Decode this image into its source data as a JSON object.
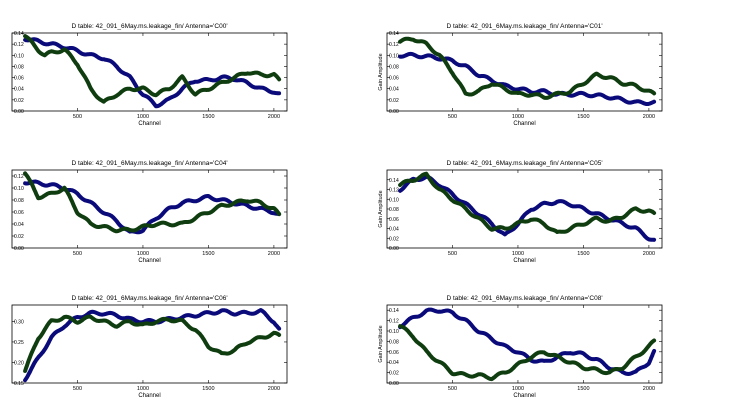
{
  "figure": {
    "colors": {
      "series_a": "#0a0a7a",
      "series_b": "#0f3d10",
      "frame": "#000000",
      "background": "#ffffff"
    }
  },
  "chart_data": [
    {
      "type": "line",
      "title": "D table: 42_091_6May.ms.leakage_fin/      Antenna='C00'",
      "xlabel": "Channel",
      "ylabel": "",
      "xlim": [
        0,
        2100
      ],
      "ylim": [
        0.0,
        0.14
      ],
      "xticks": [
        "500",
        "1000",
        "1500",
        "2000"
      ],
      "yticks": [
        "0.00",
        "0.02",
        "0.04",
        "0.06",
        "0.08",
        "0.10",
        "0.12",
        "0.14"
      ],
      "grid": false,
      "series": [
        {
          "color": "#0a0a7a",
          "x": [
            100,
            200,
            300,
            400,
            500,
            600,
            700,
            800,
            900,
            1000,
            1100,
            1200,
            1300,
            1400,
            1500,
            1600,
            1700,
            1800,
            1900,
            2000,
            2040
          ],
          "y": [
            0.13,
            0.125,
            0.12,
            0.115,
            0.108,
            0.1,
            0.095,
            0.08,
            0.06,
            0.03,
            0.01,
            0.02,
            0.04,
            0.055,
            0.055,
            0.06,
            0.058,
            0.05,
            0.04,
            0.035,
            0.03
          ]
        },
        {
          "color": "#0f3d10",
          "x": [
            100,
            200,
            250,
            300,
            400,
            500,
            600,
            700,
            800,
            900,
            1000,
            1100,
            1200,
            1300,
            1400,
            1500,
            1600,
            1700,
            1800,
            1900,
            2000,
            2040
          ],
          "y": [
            0.135,
            0.11,
            0.1,
            0.105,
            0.11,
            0.085,
            0.04,
            0.015,
            0.03,
            0.04,
            0.04,
            0.03,
            0.04,
            0.06,
            0.03,
            0.04,
            0.05,
            0.06,
            0.07,
            0.065,
            0.065,
            0.055
          ]
        }
      ]
    },
    {
      "type": "line",
      "title": "D table: 42_091_6May.ms.leakage_fin/      Antenna='C01'",
      "xlabel": "Channel",
      "ylabel": "Gain Amplitude",
      "xlim": [
        0,
        2100
      ],
      "ylim": [
        0.0,
        0.14
      ],
      "xticks": [
        "500",
        "1000",
        "1500",
        "2000"
      ],
      "yticks": [
        "0.00",
        "0.02",
        "0.04",
        "0.06",
        "0.08",
        "0.10",
        "0.12",
        "0.14"
      ],
      "grid": false,
      "series": [
        {
          "color": "#0a0a7a",
          "x": [
            100,
            200,
            300,
            400,
            500,
            600,
            700,
            800,
            900,
            1000,
            1100,
            1200,
            1300,
            1400,
            1500,
            1600,
            1700,
            1800,
            1900,
            2000,
            2040
          ],
          "y": [
            0.1,
            0.1,
            0.098,
            0.095,
            0.09,
            0.08,
            0.065,
            0.055,
            0.045,
            0.04,
            0.035,
            0.035,
            0.03,
            0.03,
            0.03,
            0.028,
            0.025,
            0.02,
            0.015,
            0.015,
            0.015
          ]
        },
        {
          "color": "#0f3d10",
          "x": [
            100,
            200,
            300,
            400,
            500,
            600,
            700,
            800,
            900,
            1000,
            1100,
            1200,
            1300,
            1400,
            1500,
            1600,
            1700,
            1800,
            1900,
            2000,
            2040
          ],
          "y": [
            0.125,
            0.13,
            0.12,
            0.1,
            0.07,
            0.03,
            0.035,
            0.05,
            0.04,
            0.03,
            0.03,
            0.025,
            0.03,
            0.035,
            0.05,
            0.065,
            0.06,
            0.05,
            0.045,
            0.035,
            0.03
          ]
        }
      ]
    },
    {
      "type": "line",
      "title": "D table: 42_091_6May.ms.leakage_fin/      Antenna='C04'",
      "xlabel": "Channel",
      "ylabel": "",
      "xlim": [
        0,
        2100
      ],
      "ylim": [
        0.0,
        0.13
      ],
      "xticks": [
        "500",
        "1000",
        "1500",
        "2000"
      ],
      "yticks": [
        "0.00",
        "0.02",
        "0.04",
        "0.06",
        "0.08",
        "0.10",
        "0.12"
      ],
      "grid": false,
      "series": [
        {
          "color": "#0a0a7a",
          "x": [
            100,
            200,
            300,
            400,
            500,
            600,
            700,
            800,
            900,
            1000,
            1100,
            1200,
            1300,
            1400,
            1500,
            1600,
            1700,
            1800,
            1900,
            2000,
            2040
          ],
          "y": [
            0.11,
            0.108,
            0.105,
            0.1,
            0.09,
            0.075,
            0.06,
            0.045,
            0.025,
            0.03,
            0.05,
            0.065,
            0.075,
            0.08,
            0.085,
            0.08,
            0.075,
            0.07,
            0.065,
            0.06,
            0.055
          ]
        },
        {
          "color": "#0f3d10",
          "x": [
            100,
            200,
            300,
            400,
            500,
            600,
            700,
            800,
            900,
            1000,
            1100,
            1200,
            1300,
            1400,
            1500,
            1600,
            1700,
            1800,
            1900,
            2000,
            2040
          ],
          "y": [
            0.125,
            0.085,
            0.09,
            0.1,
            0.06,
            0.04,
            0.035,
            0.03,
            0.03,
            0.035,
            0.04,
            0.04,
            0.04,
            0.05,
            0.06,
            0.07,
            0.075,
            0.08,
            0.075,
            0.065,
            0.055
          ]
        }
      ]
    },
    {
      "type": "line",
      "title": "D table: 42_091_6May.ms.leakage_fin/      Antenna='C05'",
      "xlabel": "Channel",
      "ylabel": "Gain Amplitude",
      "xlim": [
        0,
        2100
      ],
      "ylim": [
        0.0,
        0.16
      ],
      "xticks": [
        "500",
        "1000",
        "1500",
        "2000"
      ],
      "yticks": [
        "0.00",
        "0.02",
        "0.04",
        "0.06",
        "0.08",
        "0.10",
        "0.12",
        "0.14"
      ],
      "grid": false,
      "series": [
        {
          "color": "#0a0a7a",
          "x": [
            100,
            200,
            300,
            400,
            500,
            600,
            700,
            800,
            900,
            1000,
            1100,
            1200,
            1300,
            1400,
            1500,
            1600,
            1700,
            1800,
            1900,
            2000,
            2040
          ],
          "y": [
            0.12,
            0.14,
            0.145,
            0.13,
            0.11,
            0.09,
            0.07,
            0.05,
            0.025,
            0.05,
            0.08,
            0.09,
            0.095,
            0.09,
            0.08,
            0.07,
            0.06,
            0.05,
            0.04,
            0.02,
            0.015
          ]
        },
        {
          "color": "#0f3d10",
          "x": [
            100,
            200,
            300,
            400,
            500,
            600,
            700,
            800,
            900,
            1000,
            1100,
            1200,
            1300,
            1400,
            1500,
            1600,
            1700,
            1800,
            1900,
            2000,
            2040
          ],
          "y": [
            0.13,
            0.14,
            0.15,
            0.12,
            0.1,
            0.08,
            0.06,
            0.04,
            0.04,
            0.05,
            0.06,
            0.05,
            0.03,
            0.04,
            0.05,
            0.06,
            0.055,
            0.065,
            0.08,
            0.075,
            0.07
          ]
        }
      ]
    },
    {
      "type": "line",
      "title": "D table: 42_091_6May.ms.leakage_fin/      Antenna='C06'",
      "xlabel": "Channel",
      "ylabel": "",
      "xlim": [
        0,
        2100
      ],
      "ylim": [
        0.15,
        0.34
      ],
      "xticks": [
        "500",
        "1000",
        "1500",
        "2000"
      ],
      "yticks": [
        "0.15",
        "0.20",
        "0.25",
        "0.30"
      ],
      "grid": false,
      "series": [
        {
          "color": "#0a0a7a",
          "x": [
            100,
            200,
            300,
            400,
            500,
            600,
            700,
            800,
            900,
            1000,
            1100,
            1200,
            1300,
            1400,
            1500,
            1600,
            1700,
            1800,
            1900,
            2000,
            2040
          ],
          "y": [
            0.16,
            0.21,
            0.26,
            0.29,
            0.31,
            0.32,
            0.32,
            0.315,
            0.305,
            0.3,
            0.3,
            0.305,
            0.31,
            0.315,
            0.32,
            0.325,
            0.32,
            0.32,
            0.325,
            0.3,
            0.28
          ]
        },
        {
          "color": "#0f3d10",
          "x": [
            100,
            200,
            300,
            400,
            500,
            600,
            700,
            800,
            900,
            1000,
            1100,
            1200,
            1300,
            1400,
            1500,
            1600,
            1700,
            1800,
            1900,
            2000,
            2040
          ],
          "y": [
            0.18,
            0.26,
            0.3,
            0.31,
            0.3,
            0.31,
            0.3,
            0.29,
            0.3,
            0.29,
            0.3,
            0.305,
            0.3,
            0.28,
            0.24,
            0.22,
            0.23,
            0.25,
            0.26,
            0.27,
            0.265
          ]
        }
      ]
    },
    {
      "type": "line",
      "title": "D table: 42_091_6May.ms.leakage_fin/      Antenna='C08'",
      "xlabel": "Channel",
      "ylabel": "Gain Amplitude",
      "xlim": [
        0,
        2100
      ],
      "ylim": [
        0.0,
        0.15
      ],
      "xticks": [
        "500",
        "1000",
        "1500",
        "2000"
      ],
      "yticks": [
        "0.00",
        "0.02",
        "0.04",
        "0.06",
        "0.08",
        "0.10",
        "0.12",
        "0.14"
      ],
      "grid": false,
      "series": [
        {
          "color": "#0a0a7a",
          "x": [
            100,
            200,
            300,
            400,
            500,
            600,
            700,
            800,
            900,
            1000,
            1100,
            1200,
            1300,
            1400,
            1500,
            1600,
            1700,
            1800,
            1900,
            2000,
            2040
          ],
          "y": [
            0.11,
            0.125,
            0.138,
            0.14,
            0.135,
            0.12,
            0.1,
            0.085,
            0.07,
            0.06,
            0.045,
            0.04,
            0.05,
            0.06,
            0.055,
            0.045,
            0.03,
            0.02,
            0.02,
            0.04,
            0.06
          ]
        },
        {
          "color": "#0f3d10",
          "x": [
            100,
            200,
            300,
            400,
            500,
            600,
            700,
            800,
            900,
            1000,
            1100,
            1200,
            1300,
            1400,
            1500,
            1600,
            1700,
            1800,
            1900,
            2000,
            2040
          ],
          "y": [
            0.11,
            0.09,
            0.06,
            0.04,
            0.02,
            0.015,
            0.015,
            0.01,
            0.02,
            0.035,
            0.05,
            0.06,
            0.05,
            0.04,
            0.03,
            0.025,
            0.02,
            0.03,
            0.05,
            0.07,
            0.08
          ]
        }
      ]
    }
  ]
}
